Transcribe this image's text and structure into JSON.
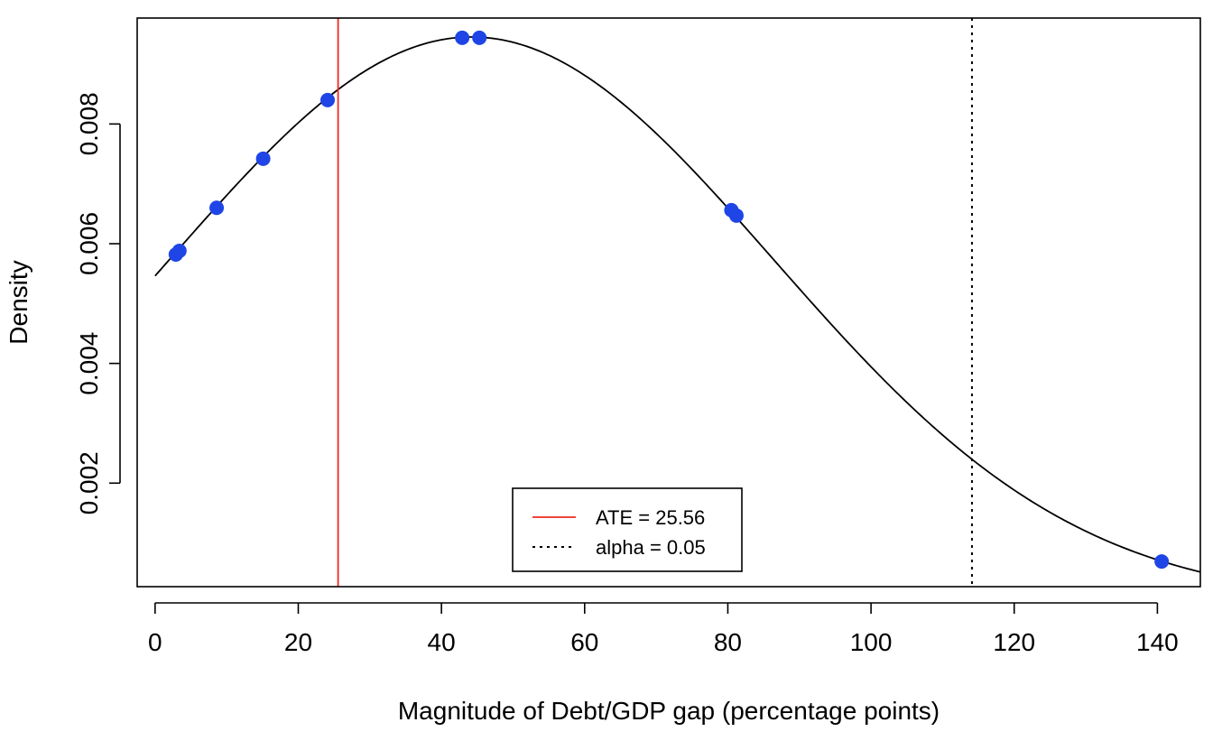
{
  "chart_data": {
    "type": "line",
    "xlabel": "Magnitude of Debt/GDP gap (percentage points)",
    "ylabel": "Density",
    "xlim": [
      -2.5,
      146
    ],
    "ylim": [
      0.00027,
      0.00977
    ],
    "x_ticks": [
      0,
      20,
      40,
      60,
      80,
      100,
      120,
      140
    ],
    "x_tick_labels": [
      "0",
      "20",
      "40",
      "60",
      "80",
      "100",
      "120",
      "140"
    ],
    "y_ticks": [
      0.002,
      0.004,
      0.006,
      0.008
    ],
    "y_tick_labels": [
      "0.002",
      "0.004",
      "0.006",
      "0.008"
    ],
    "density_curve": {
      "distribution": "normal",
      "mean": 44.2,
      "sd": 42.2,
      "x_range": [
        0,
        146
      ],
      "color": "#000000"
    },
    "points": {
      "color": "#1f45e6",
      "x": [
        2.9,
        3.4,
        8.6,
        15.1,
        24.1,
        42.9,
        45.3,
        80.5,
        81.2,
        140.6
      ],
      "y": [
        0.00582,
        0.00588,
        0.0066,
        0.00742,
        0.0084,
        0.00944,
        0.00944,
        0.00656,
        0.00647,
        0.00069
      ]
    },
    "vlines": [
      {
        "x": 25.56,
        "style": "solid",
        "color": "#ee2b22"
      },
      {
        "x": 114.1,
        "style": "dotted",
        "color": "#000000"
      }
    ],
    "legend": {
      "position": "bottom-center",
      "entries": [
        {
          "label": "ATE =  25.56",
          "style": "solid",
          "color": "#ee2b22"
        },
        {
          "label": "alpha =  0.05",
          "style": "dotted",
          "color": "#000000"
        }
      ]
    },
    "grid": false
  }
}
